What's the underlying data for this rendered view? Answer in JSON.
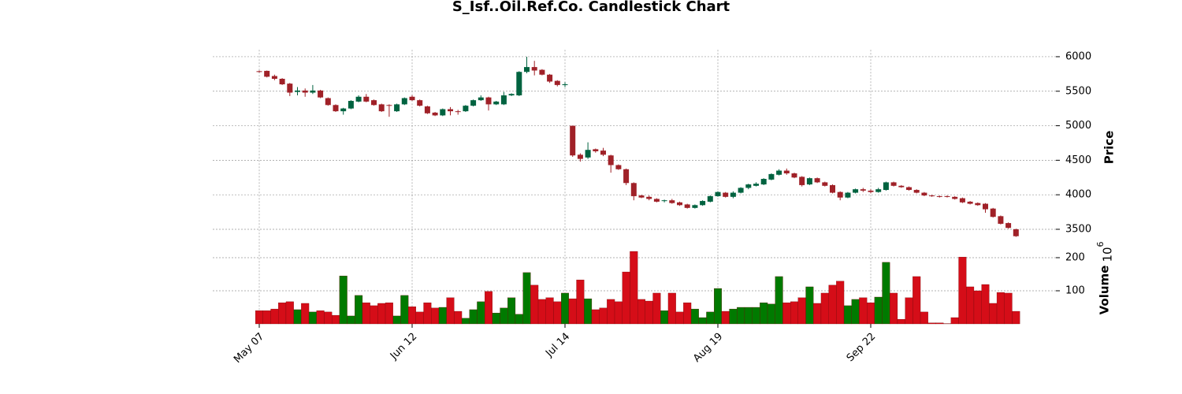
{
  "chart_data": {
    "type": "candlestick",
    "title": "S_Isf..Oil.Ref.Co. Candlestick Chart",
    "ylabel": "Price",
    "volume_label": "Volume",
    "volume_scale": {
      "base": "10",
      "exponent": "6"
    },
    "categories": [
      "May 07",
      null,
      null,
      null,
      null,
      null,
      null,
      null,
      null,
      null,
      null,
      null,
      null,
      null,
      null,
      null,
      null,
      null,
      null,
      null,
      "Jun 12",
      null,
      null,
      null,
      null,
      null,
      null,
      null,
      null,
      null,
      null,
      null,
      null,
      null,
      null,
      null,
      null,
      null,
      null,
      null,
      "Jul 14",
      null,
      null,
      null,
      null,
      null,
      null,
      null,
      null,
      null,
      null,
      null,
      null,
      null,
      null,
      null,
      null,
      null,
      null,
      null,
      "Aug 19",
      null,
      null,
      null,
      null,
      null,
      null,
      null,
      null,
      null,
      null,
      null,
      null,
      null,
      null,
      null,
      null,
      null,
      null,
      null,
      "Sep 22",
      null,
      null,
      null,
      null,
      null,
      null,
      null,
      null,
      null,
      null,
      null,
      null,
      null,
      null,
      null,
      null,
      null,
      null,
      null
    ],
    "open": [
      5790,
      5795,
      5720,
      5680,
      5610,
      5490,
      5510,
      5480,
      5510,
      5400,
      5300,
      5210,
      5250,
      5350,
      5420,
      5370,
      5310,
      5300,
      5210,
      5310,
      5420,
      5370,
      5280,
      5190,
      5150,
      5240,
      5210,
      5210,
      5290,
      5370,
      5410,
      5310,
      5310,
      5440,
      5440,
      5780,
      5850,
      5810,
      5740,
      5650,
      5590,
      5000,
      4580,
      4540,
      4660,
      4640,
      4570,
      4430,
      4370,
      4170,
      3990,
      3970,
      3940,
      3910,
      3920,
      3890,
      3860,
      3810,
      3850,
      3900,
      3980,
      4030,
      3970,
      4030,
      4100,
      4130,
      4150,
      4220,
      4290,
      4350,
      4310,
      4260,
      4150,
      4240,
      4180,
      4140,
      4040,
      3960,
      4030,
      4080,
      4060,
      4040,
      4070,
      4180,
      4130,
      4110,
      4070,
      4030,
      3990,
      3980,
      3980,
      3970,
      3950,
      3900,
      3880,
      3870,
      3800,
      3690,
      3590,
      3500
    ],
    "high": [
      5800,
      5800,
      5740,
      5690,
      5620,
      5560,
      5540,
      5590,
      5520,
      5410,
      5310,
      5260,
      5370,
      5440,
      5460,
      5380,
      5320,
      5310,
      5320,
      5410,
      5440,
      5380,
      5290,
      5200,
      5250,
      5270,
      5230,
      5300,
      5380,
      5440,
      5420,
      5360,
      5490,
      5470,
      5790,
      6000,
      5940,
      5820,
      5750,
      5660,
      5630,
      5000,
      4600,
      4760,
      4670,
      4680,
      4580,
      4440,
      4380,
      4180,
      4000,
      3990,
      3950,
      3930,
      3940,
      3900,
      3870,
      3860,
      3920,
      3990,
      4050,
      4040,
      4050,
      4110,
      4160,
      4180,
      4240,
      4310,
      4370,
      4380,
      4320,
      4270,
      4250,
      4250,
      4190,
      4150,
      4050,
      4040,
      4090,
      4100,
      4080,
      4100,
      4190,
      4190,
      4140,
      4120,
      4080,
      4040,
      4000,
      3990,
      3990,
      3980,
      3960,
      3910,
      3890,
      3880,
      3810,
      3700,
      3600,
      3510
    ],
    "low": [
      5770,
      5700,
      5660,
      5590,
      5430,
      5440,
      5420,
      5460,
      5400,
      5290,
      5200,
      5160,
      5240,
      5340,
      5340,
      5290,
      5200,
      5130,
      5200,
      5300,
      5360,
      5280,
      5170,
      5140,
      5140,
      5150,
      5160,
      5200,
      5280,
      5360,
      5220,
      5300,
      5300,
      5430,
      5430,
      5760,
      5730,
      5730,
      5620,
      5570,
      5560,
      4550,
      4480,
      4520,
      4610,
      4560,
      4320,
      4360,
      4140,
      3920,
      3950,
      3920,
      3890,
      3890,
      3870,
      3840,
      3800,
      3800,
      3840,
      3890,
      3970,
      3960,
      3950,
      4020,
      4080,
      4120,
      4140,
      4210,
      4280,
      4290,
      4240,
      4120,
      4140,
      4170,
      4120,
      4020,
      3920,
      3950,
      4020,
      4040,
      4020,
      4030,
      4060,
      4120,
      4100,
      4060,
      4020,
      3980,
      3970,
      3960,
      3960,
      3930,
      3880,
      3860,
      3840,
      3740,
      3670,
      3570,
      3510,
      3390
    ],
    "close": [
      5785,
      5710,
      5680,
      5600,
      5480,
      5510,
      5480,
      5510,
      5410,
      5300,
      5210,
      5250,
      5360,
      5420,
      5350,
      5300,
      5210,
      5290,
      5310,
      5400,
      5370,
      5290,
      5180,
      5150,
      5240,
      5210,
      5205,
      5290,
      5370,
      5410,
      5310,
      5350,
      5440,
      5460,
      5780,
      5850,
      5800,
      5740,
      5640,
      5590,
      5600,
      4570,
      4520,
      4650,
      4630,
      4580,
      4430,
      4370,
      4170,
      3980,
      3960,
      3940,
      3900,
      3920,
      3880,
      3850,
      3810,
      3850,
      3910,
      3980,
      4040,
      3970,
      4030,
      4100,
      4150,
      4160,
      4230,
      4300,
      4350,
      4310,
      4250,
      4140,
      4240,
      4180,
      4130,
      4030,
      3960,
      4030,
      4080,
      4060,
      4040,
      4080,
      4180,
      4130,
      4110,
      4070,
      4030,
      3990,
      3980,
      3975,
      3970,
      3940,
      3890,
      3870,
      3850,
      3790,
      3680,
      3580,
      3520,
      3400
    ],
    "volume": [
      40,
      40,
      45,
      64,
      67,
      43,
      62,
      36,
      40,
      36,
      26,
      145,
      24,
      86,
      64,
      55,
      62,
      64,
      24,
      86,
      52,
      36,
      64,
      48,
      50,
      79,
      38,
      17,
      43,
      67,
      98,
      33,
      48,
      79,
      29,
      155,
      117,
      74,
      79,
      67,
      93,
      76,
      133,
      76,
      43,
      48,
      74,
      67,
      157,
      219,
      74,
      69,
      93,
      40,
      93,
      36,
      64,
      45,
      19,
      36,
      107,
      38,
      45,
      50,
      50,
      50,
      64,
      60,
      143,
      64,
      67,
      79,
      112,
      62,
      93,
      117,
      129,
      55,
      74,
      79,
      64,
      81,
      186,
      93,
      14,
      79,
      143,
      36,
      3,
      3,
      1,
      19,
      202,
      112,
      100,
      119,
      62,
      95,
      93,
      38
    ],
    "up_color": "#006340",
    "down_color": "#a02128",
    "volume_up_color": "#007a00",
    "volume_down_color": "#d50d18",
    "ylim": [
      3300,
      6100
    ],
    "yticks": [
      3500,
      4000,
      4500,
      5000,
      5500,
      6000
    ],
    "volume_ylim": [
      0,
      230
    ],
    "volume_yticks": [
      100,
      200
    ],
    "grid": true
  }
}
